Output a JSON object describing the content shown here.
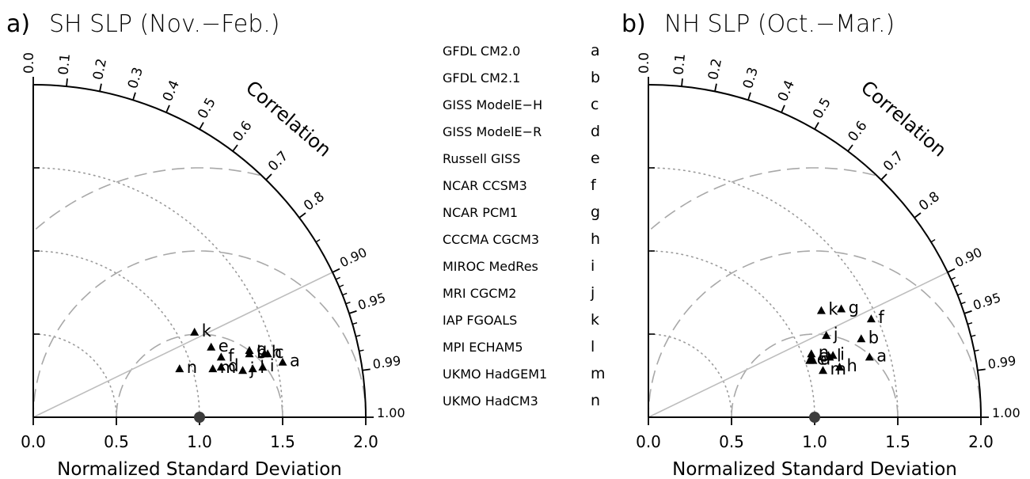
{
  "chart_data": [
    {
      "type": "scatter",
      "subtype": "taylor-diagram",
      "panel_letter": "a)",
      "title": "SH SLP (Nov.−Feb.)",
      "xlabel": "Normalized Standard Deviation",
      "polar_label": "Correlation",
      "std_ticks": [
        "0.0",
        "0.5",
        "1.0",
        "1.5",
        "2.0"
      ],
      "std_range": [
        0,
        2
      ],
      "correlation_ticks": [
        "0.0",
        "0.1",
        "0.2",
        "0.3",
        "0.4",
        "0.5",
        "0.6",
        "0.7",
        "0.8",
        "0.90",
        "0.95",
        "0.99",
        "1.00"
      ],
      "reference_point": {
        "std": 1.0,
        "correlation": 1.0
      },
      "points": [
        {
          "label": "a",
          "x": 1.5,
          "y": 0.33
        },
        {
          "label": "b",
          "x": 1.3,
          "y": 0.38
        },
        {
          "label": "c",
          "x": 1.41,
          "y": 0.38
        },
        {
          "label": "d",
          "x": 1.13,
          "y": 0.3
        },
        {
          "label": "e",
          "x": 1.07,
          "y": 0.42
        },
        {
          "label": "f",
          "x": 1.13,
          "y": 0.36
        },
        {
          "label": "g",
          "x": 1.3,
          "y": 0.4
        },
        {
          "label": "h",
          "x": 1.39,
          "y": 0.38
        },
        {
          "label": "i",
          "x": 1.38,
          "y": 0.3
        },
        {
          "label": "j",
          "x": 1.26,
          "y": 0.28
        },
        {
          "label": "k",
          "x": 0.97,
          "y": 0.51
        },
        {
          "label": "l",
          "x": 1.32,
          "y": 0.29
        },
        {
          "label": "m",
          "x": 1.08,
          "y": 0.29
        },
        {
          "label": "n",
          "x": 0.88,
          "y": 0.29
        }
      ]
    },
    {
      "type": "scatter",
      "subtype": "taylor-diagram",
      "panel_letter": "b)",
      "title": "NH SLP (Oct.−Mar.)",
      "xlabel": "Normalized Standard Deviation",
      "polar_label": "Correlation",
      "std_ticks": [
        "0.0",
        "0.5",
        "1.0",
        "1.5",
        "2.0"
      ],
      "std_range": [
        0,
        2
      ],
      "correlation_ticks": [
        "0.0",
        "0.1",
        "0.2",
        "0.3",
        "0.4",
        "0.5",
        "0.6",
        "0.7",
        "0.8",
        "0.90",
        "0.95",
        "0.99",
        "1.00"
      ],
      "reference_point": {
        "std": 1.0,
        "correlation": 1.0
      },
      "points": [
        {
          "label": "a",
          "x": 1.33,
          "y": 0.36
        },
        {
          "label": "b",
          "x": 1.28,
          "y": 0.47
        },
        {
          "label": "c",
          "x": 0.98,
          "y": 0.36
        },
        {
          "label": "d",
          "x": 0.99,
          "y": 0.34
        },
        {
          "label": "e",
          "x": 0.97,
          "y": 0.34
        },
        {
          "label": "f",
          "x": 1.34,
          "y": 0.59
        },
        {
          "label": "g",
          "x": 1.16,
          "y": 0.65
        },
        {
          "label": "h",
          "x": 1.15,
          "y": 0.3
        },
        {
          "label": "i",
          "x": 1.11,
          "y": 0.37
        },
        {
          "label": "j",
          "x": 1.07,
          "y": 0.49
        },
        {
          "label": "k",
          "x": 1.04,
          "y": 0.64
        },
        {
          "label": "l",
          "x": 1.09,
          "y": 0.36
        },
        {
          "label": "m",
          "x": 1.05,
          "y": 0.28
        },
        {
          "label": "n",
          "x": 0.98,
          "y": 0.38
        }
      ]
    }
  ],
  "legend": {
    "items": [
      {
        "model": "GFDL CM2.0",
        "code": "a"
      },
      {
        "model": "GFDL CM2.1",
        "code": "b"
      },
      {
        "model": "GISS ModelE−H",
        "code": "c"
      },
      {
        "model": "GISS ModelE−R",
        "code": "d"
      },
      {
        "model": "Russell GISS",
        "code": "e"
      },
      {
        "model": "NCAR CCSM3",
        "code": "f"
      },
      {
        "model": "NCAR PCM1",
        "code": "g"
      },
      {
        "model": "CCCMA CGCM3",
        "code": "h"
      },
      {
        "model": "MIROC MedRes",
        "code": "i"
      },
      {
        "model": "MRI CGCM2",
        "code": "j"
      },
      {
        "model": "IAP FGOALS",
        "code": "k"
      },
      {
        "model": "MPI ECHAM5",
        "code": "l"
      },
      {
        "model": "UKMO HadGEM1",
        "code": "m"
      },
      {
        "model": "UKMO HadCM3",
        "code": "n"
      }
    ]
  }
}
